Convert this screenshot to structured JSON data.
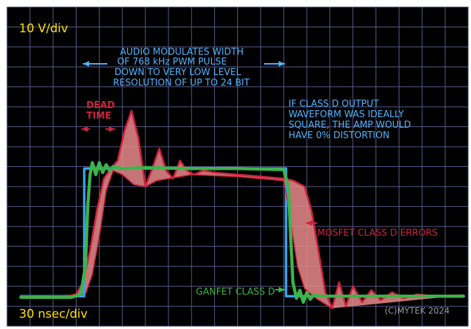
{
  "chart_data": {
    "type": "line",
    "title": "",
    "x_scale_label": "30 nsec/div",
    "y_scale_label": "10 V/div",
    "xlim": [
      0,
      20
    ],
    "ylim": [
      0,
      16
    ],
    "grid": true,
    "colors": {
      "screen": "#000000",
      "grid": "#5a5c8c",
      "scale_text": "#ffe100",
      "annotation": "#4fb4ff",
      "ideal": "#3aa0f0",
      "mosfet": "#d0233e",
      "mosfet_fill": "#e88a8a",
      "ganfet": "#3cb44a",
      "copyright": "#9a9a9a"
    },
    "series": [
      {
        "name": "",
        "key": "ideal",
        "points": [
          [
            0.6,
            1.5
          ],
          [
            3.35,
            1.5
          ],
          [
            3.35,
            7.9
          ],
          [
            12.1,
            7.9
          ],
          [
            12.1,
            1.5
          ],
          [
            19.8,
            1.5
          ]
        ]
      },
      {
        "name": "MOSFET CLASS D ERRORS",
        "key": "mosfet",
        "points": [
          [
            0.6,
            1.5
          ],
          [
            2.6,
            1.5
          ],
          [
            3.0,
            1.6
          ],
          [
            3.3,
            2.2
          ],
          [
            3.6,
            3.8
          ],
          [
            3.9,
            5.8
          ],
          [
            4.2,
            7.4
          ],
          [
            4.5,
            7.9
          ],
          [
            4.8,
            8.3
          ],
          [
            5.1,
            9.8
          ],
          [
            5.4,
            10.8
          ],
          [
            5.7,
            9.4
          ],
          [
            6.0,
            7.0
          ],
          [
            6.3,
            7.9
          ],
          [
            6.6,
            8.9
          ],
          [
            6.9,
            7.8
          ],
          [
            7.2,
            7.4
          ],
          [
            7.5,
            8.3
          ],
          [
            7.8,
            7.8
          ],
          [
            8.1,
            7.6
          ],
          [
            8.5,
            7.8
          ],
          [
            9.0,
            7.7
          ],
          [
            10.0,
            7.6
          ],
          [
            11.0,
            7.5
          ],
          [
            12.0,
            7.4
          ],
          [
            12.4,
            7.3
          ],
          [
            12.9,
            7.0
          ],
          [
            13.2,
            5.8
          ],
          [
            13.5,
            3.8
          ],
          [
            13.8,
            1.7
          ],
          [
            14.1,
            0.9
          ],
          [
            14.4,
            2.2
          ],
          [
            14.7,
            1.0
          ],
          [
            15.0,
            2.0
          ],
          [
            15.4,
            1.2
          ],
          [
            15.8,
            1.8
          ],
          [
            16.2,
            1.3
          ],
          [
            16.7,
            1.7
          ],
          [
            17.2,
            1.4
          ],
          [
            17.8,
            1.6
          ],
          [
            18.5,
            1.5
          ],
          [
            19.8,
            1.55
          ]
        ]
      },
      {
        "name": "",
        "key": "mosfet_envelope_lower",
        "points": [
          [
            3.4,
            1.6
          ],
          [
            3.7,
            2.6
          ],
          [
            4.0,
            4.5
          ],
          [
            4.3,
            6.8
          ],
          [
            4.6,
            7.8
          ],
          [
            5.0,
            7.6
          ],
          [
            5.5,
            7.1
          ],
          [
            6.0,
            7.0
          ],
          [
            6.5,
            7.3
          ],
          [
            7.0,
            7.4
          ],
          [
            8.0,
            7.6
          ],
          [
            10.0,
            7.5
          ],
          [
            12.0,
            7.3
          ],
          [
            12.2,
            6.0
          ],
          [
            12.4,
            4.5
          ],
          [
            12.6,
            3.0
          ],
          [
            12.9,
            1.9
          ],
          [
            13.4,
            1.4
          ],
          [
            14.1,
            0.9
          ]
        ]
      },
      {
        "name": "GANFET CLASS D",
        "key": "ganfet",
        "points": [
          [
            0.6,
            1.45
          ],
          [
            2.8,
            1.45
          ],
          [
            3.2,
            1.6
          ],
          [
            3.4,
            3.0
          ],
          [
            3.5,
            6.0
          ],
          [
            3.6,
            7.6
          ],
          [
            3.7,
            8.2
          ],
          [
            3.85,
            7.6
          ],
          [
            4.0,
            8.2
          ],
          [
            4.15,
            7.7
          ],
          [
            4.3,
            8.1
          ],
          [
            4.45,
            7.8
          ],
          [
            4.6,
            8.0
          ],
          [
            5.0,
            7.9
          ],
          [
            6.0,
            7.95
          ],
          [
            8.0,
            7.9
          ],
          [
            10.0,
            7.9
          ],
          [
            12.0,
            7.85
          ],
          [
            12.2,
            7.0
          ],
          [
            12.3,
            4.5
          ],
          [
            12.4,
            2.2
          ],
          [
            12.55,
            1.4
          ],
          [
            12.7,
            1.8
          ],
          [
            12.85,
            1.2
          ],
          [
            13.0,
            1.7
          ],
          [
            13.15,
            1.35
          ],
          [
            13.3,
            1.55
          ],
          [
            13.6,
            1.5
          ],
          [
            15.0,
            1.5
          ],
          [
            19.8,
            1.5
          ]
        ]
      }
    ],
    "annotations": {
      "audio_lines": [
        "AUDIO MODULATES WIDTH",
        "OF 768 kHz PWM PULSE",
        "DOWN TO VERY LOW LEVEL",
        "RESOLUTION OF UP TO 24 BIT"
      ],
      "dead_time_lines": [
        "DEAD",
        "TIME"
      ],
      "ideal_lines": [
        "IF CLASS D OUTPUT",
        "WAVEFORM WAS IDEALLY",
        "SQUARE, THE AMP WOULD",
        "HAVE 0% DISTORTION"
      ],
      "mosfet_label": "MOSFET CLASS D ERRORS",
      "ganfet_label": "GANFET CLASS D",
      "copyright": "(C)MYTEK 2024"
    }
  }
}
